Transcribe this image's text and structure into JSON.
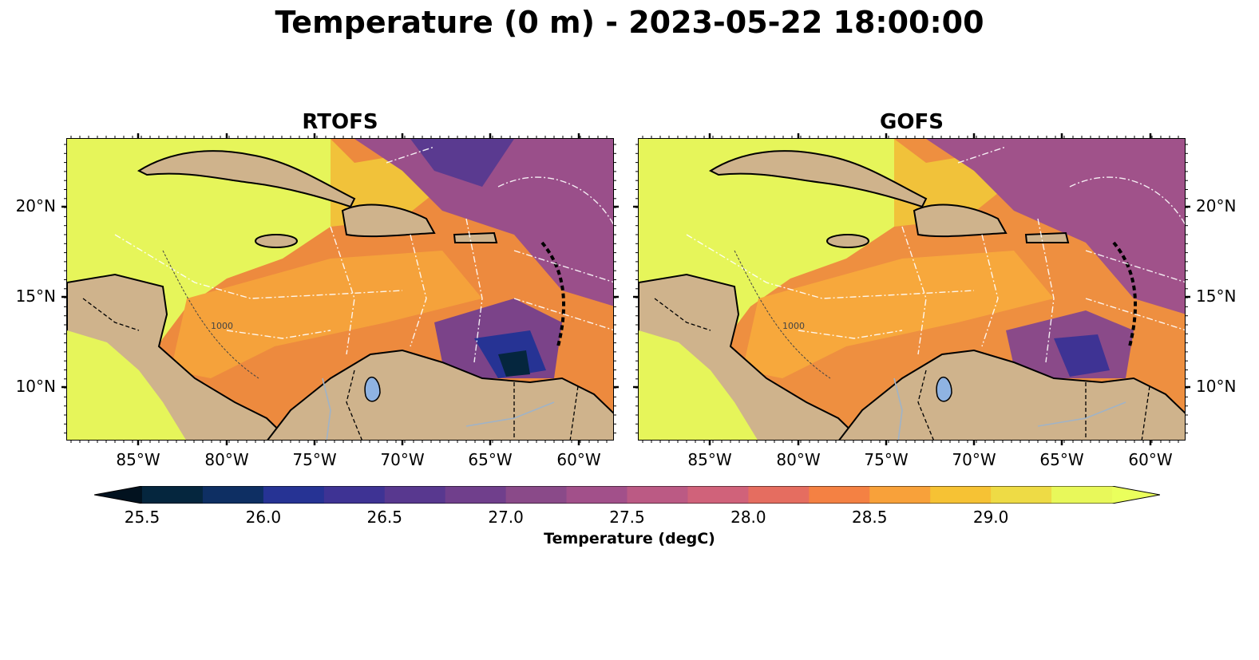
{
  "title": "Temperature (0 m) - 2023-05-22 18:00:00",
  "panels": [
    {
      "name": "RTOFS"
    },
    {
      "name": "GOFS"
    }
  ],
  "lon_labels": [
    "85°W",
    "80°W",
    "75°W",
    "70°W",
    "65°W",
    "60°W"
  ],
  "lat_labels": [
    "20°N",
    "15°N",
    "10°N"
  ],
  "contour_label": "1000",
  "colorbar": {
    "label": "Temperature (degC)",
    "tick_labels": [
      "25.5",
      "26.0",
      "26.5",
      "27.0",
      "27.5",
      "28.0",
      "28.5",
      "29.0"
    ],
    "min": 25.5,
    "max": 29.25,
    "step": 0.25,
    "extend": "both",
    "colors": [
      "#05263e",
      "#0e2f63",
      "#263394",
      "#3e3394",
      "#58388f",
      "#703f8c",
      "#8a4a89",
      "#a2508a",
      "#bb5a84",
      "#d0627a",
      "#e56d60",
      "#f48143",
      "#f8a13a",
      "#f6c234",
      "#eedb45",
      "#e8f85a"
    ]
  },
  "map_colors": {
    "land": "#cfb38c",
    "lake": "#8fb3e2"
  }
}
